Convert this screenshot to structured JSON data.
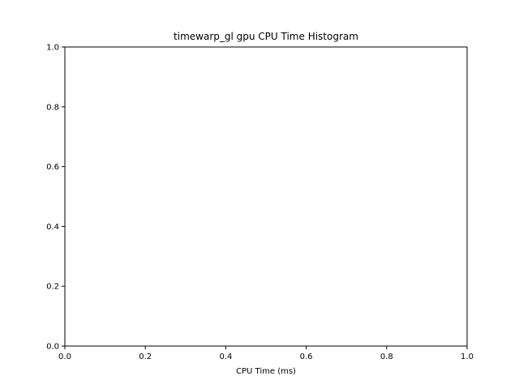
{
  "chart_data": {
    "type": "bar",
    "title": "timewarp_gl gpu CPU Time Histogram",
    "xlabel": "CPU Time (ms)",
    "ylabel": "",
    "xlim": [
      0,
      1
    ],
    "ylim": [
      0,
      1
    ],
    "xticks": [
      "0.0",
      "0.2",
      "0.4",
      "0.6",
      "0.8",
      "1.0"
    ],
    "yticks": [
      "0.0",
      "0.2",
      "0.4",
      "0.6",
      "0.8",
      "1.0"
    ],
    "grid": false,
    "series": []
  }
}
